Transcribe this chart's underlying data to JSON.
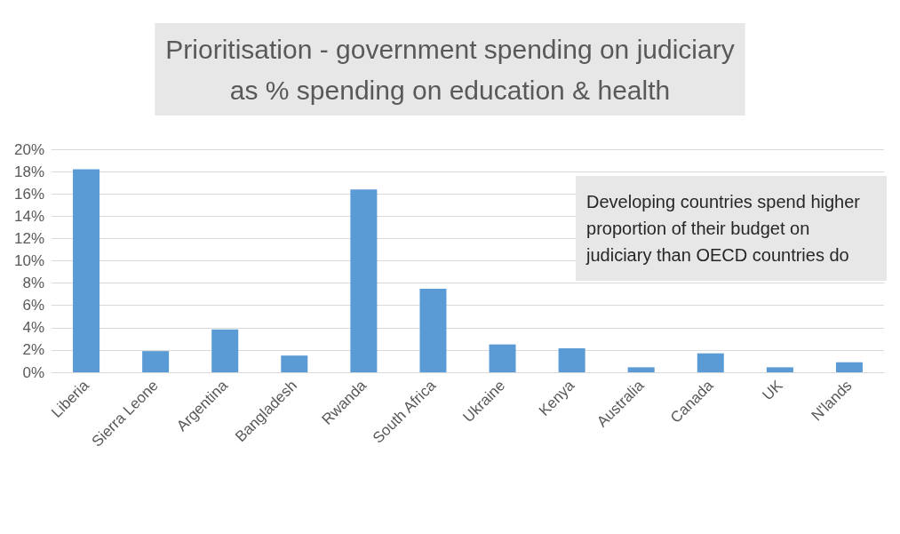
{
  "chart_data": {
    "type": "bar",
    "title": "Prioritisation - government spending on judiciary\nas % spending on education & health",
    "categories": [
      "Liberia",
      "Sierra Leone",
      "Argentina",
      "Bangladesh",
      "Rwanda",
      "South Africa",
      "Ukraine",
      "Kenya",
      "Australia",
      "Canada",
      "UK",
      "N'lands"
    ],
    "values": [
      18.2,
      1.9,
      3.85,
      1.5,
      16.4,
      7.5,
      2.5,
      2.15,
      0.45,
      1.7,
      0.45,
      0.9
    ],
    "color": "#5b9bd5",
    "ylim": [
      0,
      20
    ],
    "yticks": [
      {
        "value": 0,
        "label": "0%"
      },
      {
        "value": 2,
        "label": "2%"
      },
      {
        "value": 4,
        "label": "4%"
      },
      {
        "value": 6,
        "label": "6%"
      },
      {
        "value": 8,
        "label": "8%"
      },
      {
        "value": 10,
        "label": "10%"
      },
      {
        "value": 12,
        "label": "12%"
      },
      {
        "value": 14,
        "label": "14%"
      },
      {
        "value": 16,
        "label": "16%"
      },
      {
        "value": 18,
        "label": "18%"
      },
      {
        "value": 20,
        "label": "20%"
      }
    ],
    "grid": "y",
    "annotations": [
      "Developing countries spend higher\nproportion of their budget on\njudiciary than OECD countries do"
    ]
  }
}
